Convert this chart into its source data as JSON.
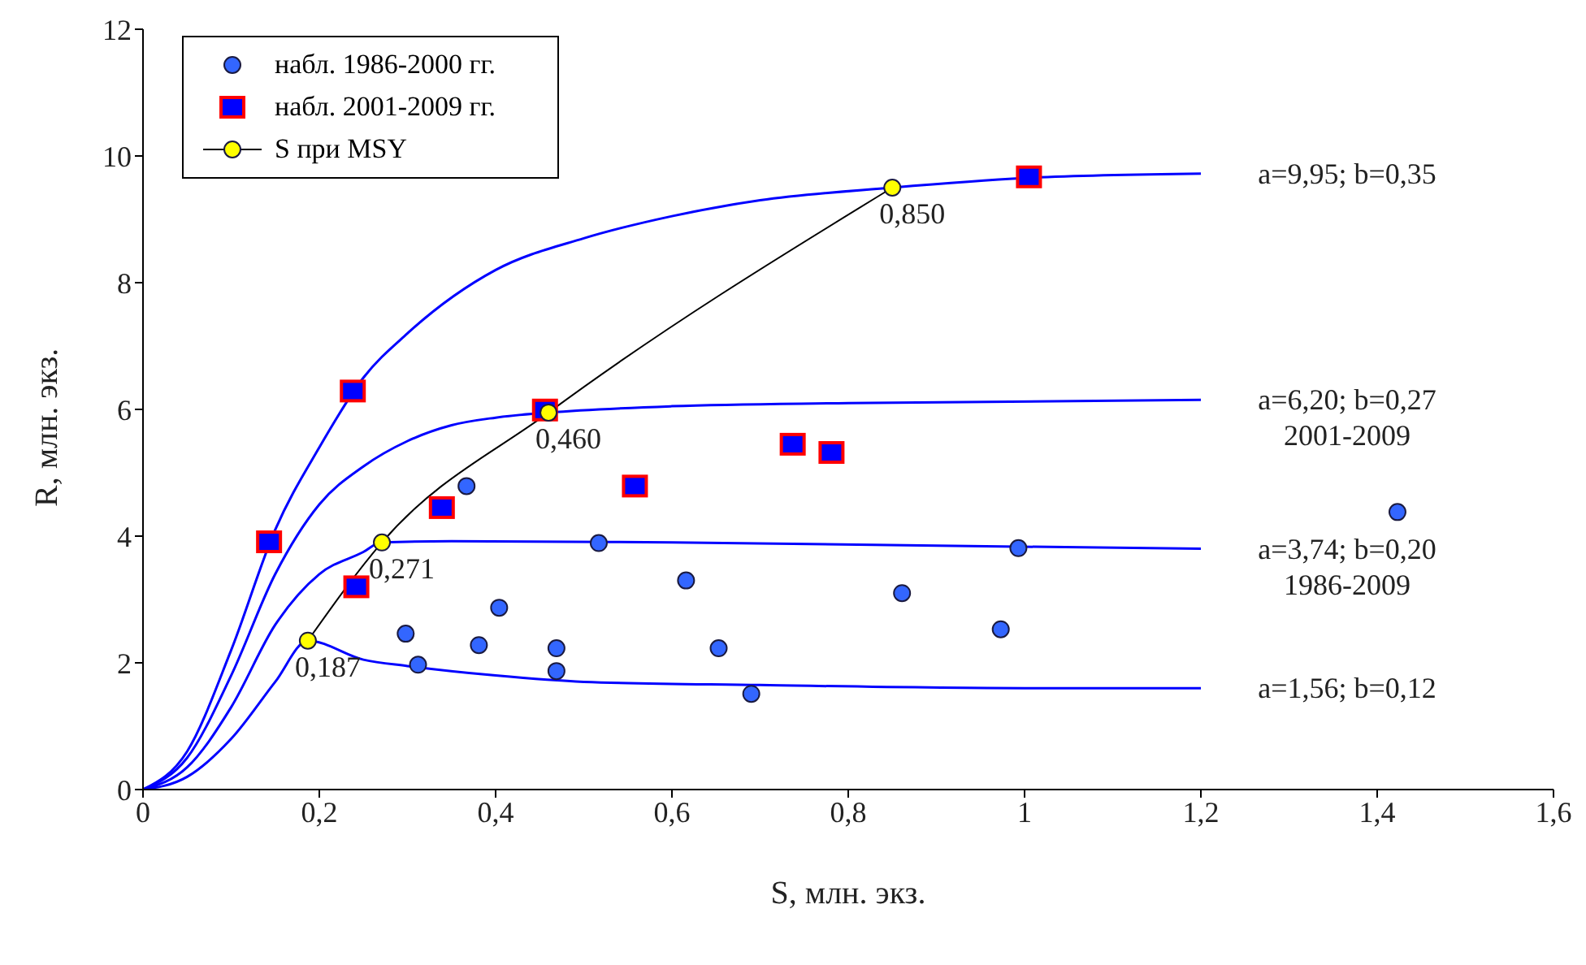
{
  "chart_data": {
    "type": "scatter",
    "xlabel": "S, млн. экз.",
    "ylabel": "R, млн. экз.",
    "xlim": [
      0,
      1.6
    ],
    "xticks": [
      0,
      {
        "value": 0.2,
        "label": "0,2"
      },
      {
        "value": 0.4,
        "label": "0,4"
      },
      {
        "value": 0.6,
        "label": "0,6"
      },
      {
        "value": 0.8,
        "label": "0,8"
      },
      1,
      {
        "value": 1.2,
        "label": "1,2"
      },
      {
        "value": 1.4,
        "label": "1,4"
      },
      {
        "value": 1.6,
        "label": "1,6"
      }
    ],
    "ylim": [
      0,
      12
    ],
    "yticks": [
      0,
      2,
      4,
      6,
      8,
      10,
      12
    ],
    "grid": false,
    "legend": "top left",
    "series": [
      {
        "name": "набл. 1986-2000 гг.",
        "marker": "circle",
        "color": "#3366ff",
        "x": [
          0.298,
          0.312,
          0.381,
          0.404,
          0.367,
          0.469,
          0.469,
          0.517,
          0.616,
          0.653,
          0.69,
          0.861,
          0.973,
          0.993,
          1.423
        ],
        "values": [
          2.46,
          1.97,
          2.28,
          2.87,
          4.79,
          2.23,
          1.87,
          3.89,
          3.3,
          2.23,
          1.51,
          3.1,
          2.53,
          3.81,
          4.38
        ]
      },
      {
        "name": "набл. 2001-2009 гг.",
        "marker": "square",
        "color": "#0000ff",
        "x": [
          0.143,
          0.238,
          0.242,
          0.339,
          0.456,
          0.558,
          0.737,
          0.781,
          1.005
        ],
        "values": [
          3.91,
          6.29,
          3.2,
          4.45,
          5.99,
          4.79,
          5.45,
          5.32,
          9.67
        ]
      },
      {
        "type": "line",
        "marker": "none",
        "color": "#0000ff",
        "x": [
          0,
          0.05,
          0.1,
          0.15,
          0.2,
          0.25,
          0.3,
          0.4,
          0.5,
          0.6,
          0.7,
          0.85,
          1,
          1.2
        ],
        "values": [
          0,
          0.6,
          2.2,
          4.1,
          5.4,
          6.5,
          7.2,
          8.2,
          8.7,
          9.05,
          9.3,
          9.5,
          9.65,
          9.72
        ]
      },
      {
        "type": "line",
        "marker": "none",
        "color": "#0000ff",
        "x": [
          0,
          0.05,
          0.1,
          0.15,
          0.2,
          0.25,
          0.3,
          0.35,
          0.4,
          0.46,
          0.6,
          0.8,
          1.2
        ],
        "values": [
          0,
          0.5,
          1.8,
          3.4,
          4.5,
          5.1,
          5.5,
          5.75,
          5.87,
          5.95,
          6.05,
          6.1,
          6.15
        ]
      },
      {
        "type": "line",
        "marker": "none",
        "color": "#0000ff",
        "x": [
          0,
          0.05,
          0.1,
          0.15,
          0.2,
          0.25,
          0.27,
          0.35,
          0.6,
          1.2
        ],
        "values": [
          0,
          0.35,
          1.3,
          2.6,
          3.4,
          3.75,
          3.9,
          3.92,
          3.9,
          3.8
        ]
      },
      {
        "type": "line",
        "marker": "none",
        "color": "#0000ff",
        "x": [
          0,
          0.05,
          0.1,
          0.15,
          0.187,
          0.25,
          0.3,
          0.4,
          0.5,
          0.7,
          1,
          1.2
        ],
        "values": [
          0,
          0.2,
          0.8,
          1.7,
          2.35,
          2.05,
          1.95,
          1.8,
          1.7,
          1.65,
          1.6,
          1.6
        ]
      },
      {
        "name": "S при MSY",
        "type": "line",
        "marker": "circle",
        "color": "#ffff00",
        "x": [
          0.187,
          0.271,
          0.46,
          0.85
        ],
        "values": [
          2.35,
          3.9,
          5.95,
          9.5
        ]
      }
    ],
    "annotations": [
      {
        "text": "a=9,95; b=0,35",
        "x": 1.2,
        "y": 9.72
      },
      {
        "text": "a=6,20; b=0,27\n2001-2009",
        "x": 1.2,
        "y": 6.15
      },
      {
        "text": "a=3,74; b=0,20\n1986-2009",
        "x": 1.2,
        "y": 3.8
      },
      {
        "text": "a=1,56; b=0,12",
        "x": 1.2,
        "y": 1.6
      },
      {
        "text": "0,187",
        "x": 0.187,
        "y": 2.35
      },
      {
        "text": "0,271",
        "x": 0.271,
        "y": 3.9
      },
      {
        "text": "0,460",
        "x": 0.46,
        "y": 5.95
      },
      {
        "text": "0,850",
        "x": 0.85,
        "y": 9.5
      }
    ]
  }
}
